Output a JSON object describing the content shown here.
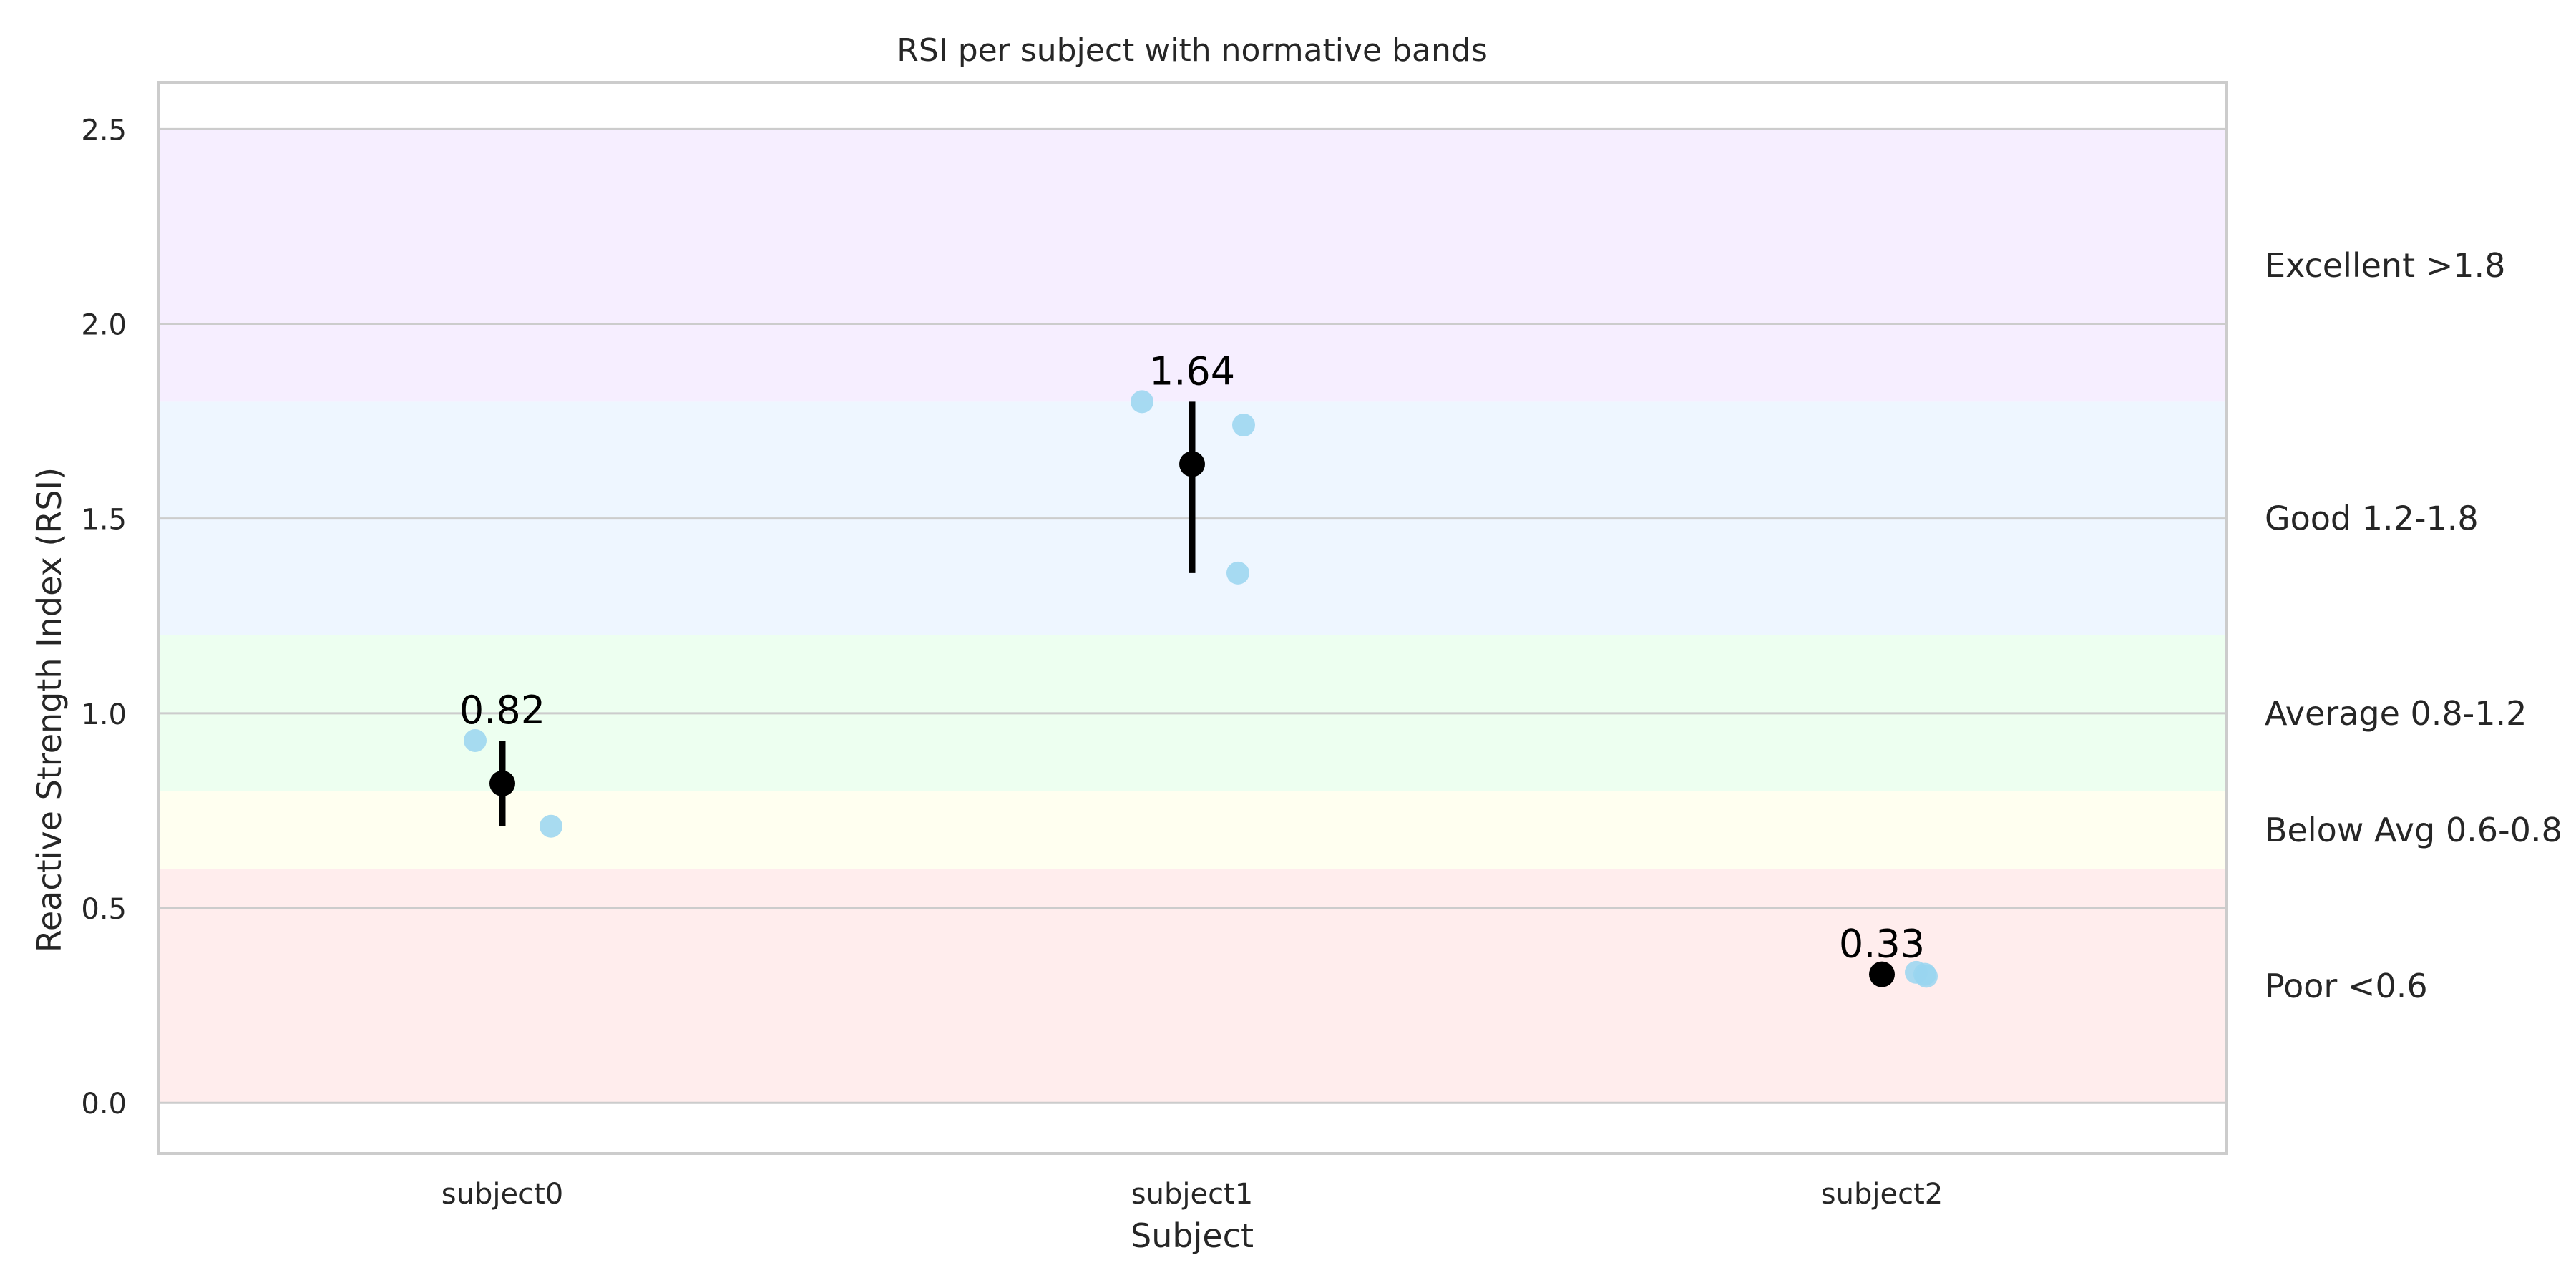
{
  "chart_data": {
    "type": "scatter",
    "title": "RSI per subject with normative bands",
    "xlabel": "Subject",
    "ylabel": "Reactive Strength Index (RSI)",
    "categories": [
      "subject0",
      "subject1",
      "subject2"
    ],
    "ylim": [
      -0.13,
      2.62
    ],
    "yticks": [
      "0.0",
      "0.5",
      "1.0",
      "1.5",
      "2.0",
      "2.5"
    ],
    "grid": true,
    "bands": [
      {
        "label": "Poor <0.6",
        "from": 0.0,
        "to": 0.6,
        "color": "#ffeded"
      },
      {
        "label": "Below Avg 0.6-0.8",
        "from": 0.6,
        "to": 0.8,
        "color": "#fffff0"
      },
      {
        "label": "Average 0.8-1.2",
        "from": 0.8,
        "to": 1.2,
        "color": "#edfff0"
      },
      {
        "label": "Good 1.2-1.8",
        "from": 1.2,
        "to": 1.8,
        "color": "#eef6ff"
      },
      {
        "label": "Excellent >1.8",
        "from": 1.8,
        "to": 2.5,
        "color": "#f6eeff"
      }
    ],
    "trials": [
      {
        "category": "subject0",
        "values": [
          0.93,
          0.71
        ]
      },
      {
        "category": "subject1",
        "values": [
          1.8,
          1.74,
          1.36
        ]
      },
      {
        "category": "subject2",
        "values": [
          0.335,
          0.33,
          0.325
        ]
      }
    ],
    "means": [
      0.82,
      1.64,
      0.33
    ],
    "errors": [
      {
        "low": 0.71,
        "high": 0.93
      },
      {
        "low": 1.36,
        "high": 1.8
      },
      {
        "low": 0.33,
        "high": 0.33
      }
    ],
    "mean_labels": [
      "0.82",
      "1.64",
      "0.33"
    ],
    "colors": {
      "trial": "#99d5f0",
      "mean": "#000000",
      "grid": "#cccccc",
      "spine": "#cccccc"
    }
  }
}
